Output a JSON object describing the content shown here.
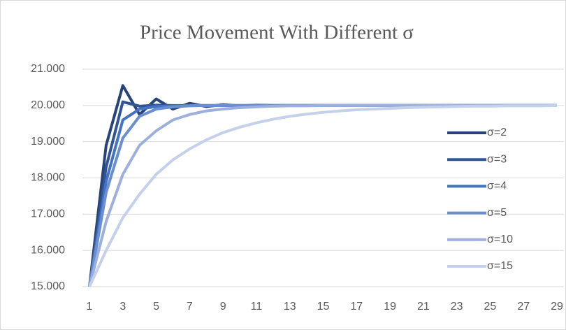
{
  "chart_data": {
    "type": "line",
    "title": "Price Movement With Different σ",
    "x": [
      1,
      2,
      3,
      4,
      5,
      6,
      7,
      8,
      9,
      10,
      11,
      12,
      13,
      14,
      15,
      16,
      17,
      18,
      19,
      20,
      21,
      22,
      23,
      24,
      25,
      26,
      27,
      28,
      29
    ],
    "xlim": [
      1,
      29
    ],
    "xticks": [
      1,
      3,
      5,
      7,
      9,
      11,
      13,
      15,
      17,
      19,
      21,
      23,
      25,
      27,
      29
    ],
    "ylim": [
      15,
      21
    ],
    "yticks": [
      {
        "value": 15,
        "label": "15.000"
      },
      {
        "value": 16,
        "label": "16.000"
      },
      {
        "value": 17,
        "label": "17.000"
      },
      {
        "value": 18,
        "label": "18.000"
      },
      {
        "value": 19,
        "label": "19.000"
      },
      {
        "value": 20,
        "label": "20.000"
      },
      {
        "value": 21,
        "label": "21.000"
      }
    ],
    "grid": true,
    "legend": "right",
    "series": [
      {
        "name": "σ=2",
        "color": "#264478",
        "values": [
          15,
          18.9,
          20.55,
          19.75,
          20.18,
          19.9,
          20.06,
          19.97,
          20.02,
          19.99,
          20.01,
          20,
          20,
          20,
          20,
          20,
          20,
          20,
          20,
          20,
          20,
          20,
          20,
          20,
          20,
          20,
          20,
          20,
          20
        ]
      },
      {
        "name": "σ=3",
        "color": "#2f5597",
        "values": [
          15,
          18.3,
          20.1,
          19.98,
          20.01,
          20,
          20,
          20,
          20,
          20,
          20,
          20,
          20,
          20,
          20,
          20,
          20,
          20,
          20,
          20,
          20,
          20,
          20,
          20,
          20,
          20,
          20,
          20,
          20
        ]
      },
      {
        "name": "σ=4",
        "color": "#4472c4",
        "values": [
          15,
          17.9,
          19.6,
          19.9,
          19.97,
          19.99,
          20,
          20,
          20,
          20,
          20,
          20,
          20,
          20,
          20,
          20,
          20,
          20,
          20,
          20,
          20,
          20,
          20,
          20,
          20,
          20,
          20,
          20,
          20
        ]
      },
      {
        "name": "σ=5",
        "color": "#6a8ed0",
        "values": [
          15,
          17.6,
          19.1,
          19.7,
          19.9,
          19.96,
          19.99,
          20,
          20,
          20,
          20,
          20,
          20,
          20,
          20,
          20,
          20,
          20,
          20,
          20,
          20,
          20,
          20,
          20,
          20,
          20,
          20,
          20,
          20
        ]
      },
      {
        "name": "σ=10",
        "color": "#9dafdc",
        "values": [
          15,
          16.8,
          18.1,
          18.9,
          19.3,
          19.6,
          19.75,
          19.85,
          19.9,
          19.94,
          19.96,
          19.98,
          19.99,
          19.99,
          20,
          20,
          20,
          20,
          20,
          20,
          20,
          20,
          20,
          20,
          20,
          20,
          20,
          20,
          20
        ]
      },
      {
        "name": "σ=15",
        "color": "#c5d0ea",
        "values": [
          15,
          16,
          16.9,
          17.55,
          18.1,
          18.5,
          18.8,
          19.05,
          19.25,
          19.4,
          19.52,
          19.62,
          19.7,
          19.76,
          19.81,
          19.85,
          19.88,
          19.9,
          19.92,
          19.94,
          19.95,
          19.96,
          19.97,
          19.98,
          19.98,
          19.99,
          19.99,
          19.99,
          20
        ]
      }
    ]
  }
}
